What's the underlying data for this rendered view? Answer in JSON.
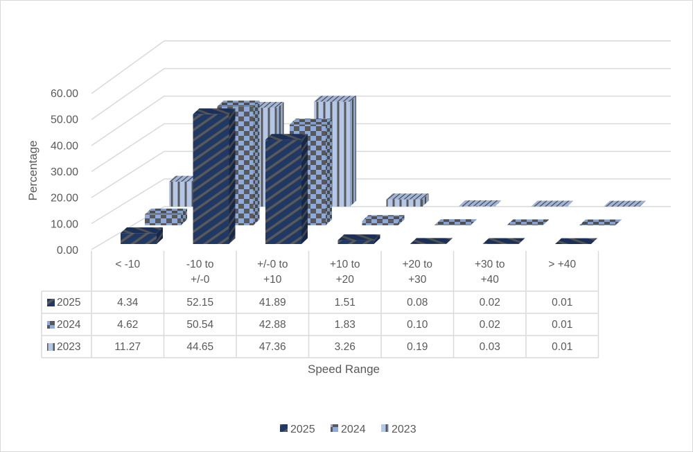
{
  "chart_data": {
    "type": "bar",
    "subtype": "3d-column-with-data-table",
    "title": "",
    "xlabel": "Speed Range",
    "ylabel": "Percentage",
    "ylim": [
      0,
      60
    ],
    "yticks": [
      "0.00",
      "10.00",
      "20.00",
      "30.00",
      "40.00",
      "50.00",
      "60.00"
    ],
    "grid": true,
    "legend_position": "bottom",
    "categories": [
      [
        "< -10"
      ],
      [
        "-10 to",
        "+/-0"
      ],
      [
        "+/-0 to",
        "+10"
      ],
      [
        "+10 to",
        "+20"
      ],
      [
        "+20 to",
        "+30"
      ],
      [
        "+30 to",
        "+40"
      ],
      [
        "> +40"
      ]
    ],
    "series": [
      {
        "name": "2025",
        "pattern": "diagonal-stripes",
        "color": "#1f3864",
        "color2": "#595959",
        "values": [
          4.34,
          52.15,
          41.89,
          1.51,
          0.08,
          0.02,
          0.01
        ],
        "labels": [
          "4.34",
          "52.15",
          "41.89",
          "1.51",
          "0.08",
          "0.02",
          "0.01"
        ]
      },
      {
        "name": "2024",
        "pattern": "checkerboard",
        "color": "#8eaadb",
        "color2": "#595959",
        "values": [
          4.62,
          50.54,
          42.88,
          1.83,
          0.1,
          0.02,
          0.01
        ],
        "labels": [
          "4.62",
          "50.54",
          "42.88",
          "1.83",
          "0.10",
          "0.02",
          "0.01"
        ]
      },
      {
        "name": "2023",
        "pattern": "vertical-stripes",
        "color": "#b4c7e7",
        "color2": "#595959",
        "values": [
          11.27,
          44.65,
          47.36,
          3.26,
          0.19,
          0.03,
          0.01
        ],
        "labels": [
          "11.27",
          "44.65",
          "47.36",
          "3.26",
          "0.19",
          "0.03",
          "0.01"
        ]
      }
    ]
  }
}
